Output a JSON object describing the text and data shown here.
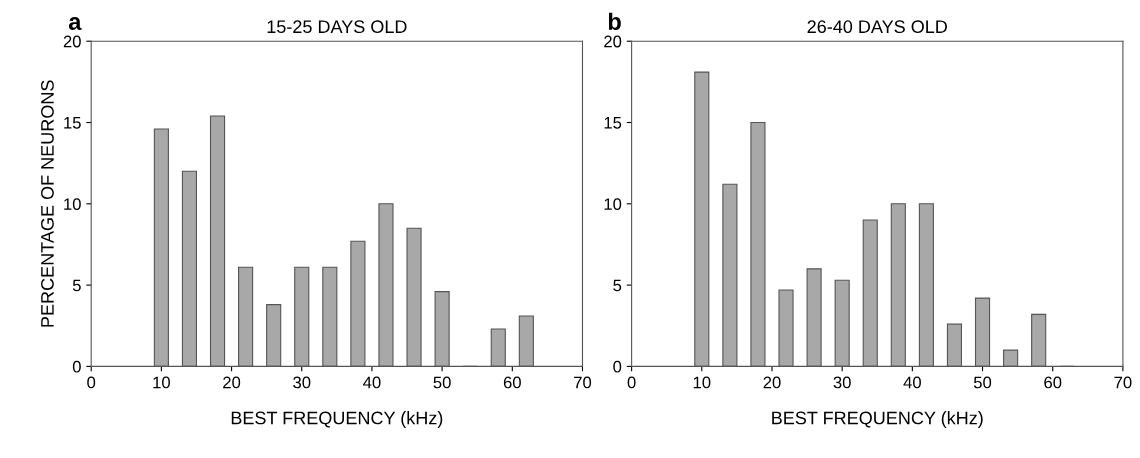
{
  "chart_data": [
    {
      "type": "bar",
      "title": "15-25 DAYS OLD",
      "xlabel": "BEST FREQUENCY (kHz)",
      "ylabel": "PERCENTAGE OF NEURONS",
      "annotations": [
        "a"
      ],
      "x": [
        10,
        14,
        18,
        22,
        26,
        30,
        34,
        38,
        42,
        46,
        50,
        54,
        58,
        62
      ],
      "values": [
        14.6,
        12,
        15.4,
        6.1,
        3.8,
        6.1,
        6.1,
        7.7,
        10,
        8.5,
        4.6,
        0,
        2.3,
        3.1
      ],
      "color": "#a8a8a8",
      "xlim": [
        0,
        70
      ],
      "xticks": [
        0,
        10,
        20,
        30,
        40,
        50,
        60,
        70
      ],
      "ylim": [
        0,
        20
      ],
      "yticks": [
        0,
        5,
        10,
        15,
        20
      ],
      "grid": false,
      "legend": false
    },
    {
      "type": "bar",
      "title": "26-40 DAYS OLD",
      "xlabel": "BEST FREQUENCY (kHz)",
      "annotations": [
        "b"
      ],
      "x": [
        10,
        14,
        18,
        22,
        26,
        30,
        34,
        38,
        42,
        46,
        50,
        54,
        58,
        62
      ],
      "values": [
        18.1,
        11.2,
        15,
        4.7,
        6,
        5.3,
        9,
        10,
        10,
        2.6,
        4.2,
        1,
        3.2,
        0
      ],
      "color": "#a8a8a8",
      "xlim": [
        0,
        70
      ],
      "xticks": [
        0,
        10,
        20,
        30,
        40,
        50,
        60,
        70
      ],
      "ylim": [
        0,
        20
      ],
      "yticks": [
        0,
        5,
        10,
        15,
        20
      ],
      "grid": false,
      "legend": false
    }
  ]
}
